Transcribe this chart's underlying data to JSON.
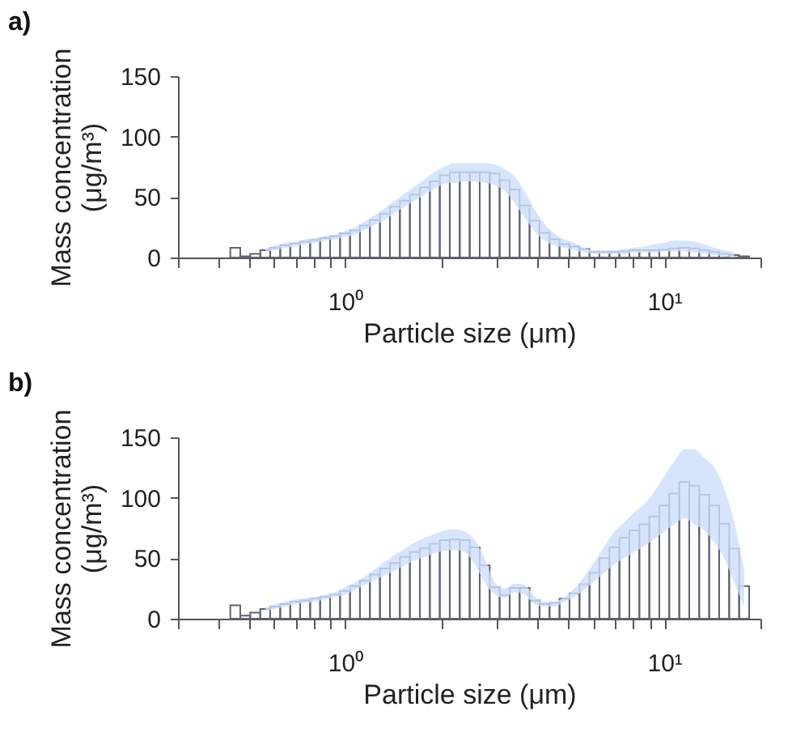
{
  "chart_data": [
    {
      "type": "histogram",
      "title": "a)",
      "xlabel": "Particle size (μm)",
      "ylabel": "Mass concentration (μg/m³)",
      "log": "x",
      "xlim": [
        0.3,
        20
      ],
      "xticks": [
        {
          "value": 0.3,
          "label": null
        },
        {
          "value": 0.4,
          "label": null
        },
        {
          "value": 0.5,
          "label": null
        },
        {
          "value": 0.6,
          "label": null
        },
        {
          "value": 0.7,
          "label": null
        },
        {
          "value": 0.8,
          "label": null
        },
        {
          "value": 0.9,
          "label": null
        },
        {
          "value": 1,
          "label": "10⁰"
        },
        {
          "value": 2,
          "label": null
        },
        {
          "value": 3,
          "label": null
        },
        {
          "value": 4,
          "label": null
        },
        {
          "value": 5,
          "label": null
        },
        {
          "value": 6,
          "label": null
        },
        {
          "value": 7,
          "label": null
        },
        {
          "value": 8,
          "label": null
        },
        {
          "value": 9,
          "label": null
        },
        {
          "value": 10,
          "label": "10¹"
        },
        {
          "value": 20,
          "label": null
        }
      ],
      "ylim": [
        0,
        150
      ],
      "yticks": [
        0,
        50,
        100,
        150
      ],
      "bins": [
        0.4375,
        0.47,
        0.505,
        0.543,
        0.583,
        0.627,
        0.674,
        0.724,
        0.778,
        0.836,
        0.898,
        0.965,
        1.037,
        1.114,
        1.197,
        1.287,
        1.383,
        1.486,
        1.597,
        1.716,
        1.844,
        1.981,
        2.129,
        2.288,
        2.458,
        2.642,
        2.839,
        3.05,
        3.278,
        3.523,
        3.785,
        4.068,
        4.371,
        4.697,
        5.048,
        5.424,
        5.829,
        6.264,
        6.731,
        7.233,
        7.772,
        8.352,
        8.975,
        9.645,
        10.36,
        11.14,
        11.97,
        12.86,
        13.82,
        14.85,
        15.96,
        17.15,
        18.43
      ],
      "series": [
        {
          "type": "histogram",
          "color": "#5f6470",
          "values": [
            8,
            1,
            3,
            6,
            8,
            10,
            11.5,
            13,
            14.5,
            16,
            17.5,
            20,
            22.5,
            26.5,
            31,
            36,
            42,
            47,
            52,
            58,
            63,
            68,
            70.5,
            70.5,
            70.5,
            70.5,
            69.5,
            64,
            56,
            43,
            30.5,
            20.5,
            15,
            11,
            9,
            7,
            4.5,
            4.5,
            4.5,
            5,
            6,
            6,
            6,
            6.5,
            7.5,
            8,
            7.5,
            6,
            4.5,
            3,
            2,
            1
          ]
        },
        {
          "type": "area",
          "color": "#cddffb",
          "x": [
            0.563,
            0.605,
            0.65,
            0.699,
            0.751,
            0.807,
            0.867,
            0.931,
            1.0,
            1.075,
            1.155,
            1.241,
            1.334,
            1.434,
            1.54,
            1.655,
            1.779,
            1.911,
            2.054,
            2.207,
            2.371,
            2.548,
            2.738,
            2.942,
            3.162,
            3.398,
            3.652,
            3.924,
            4.217,
            4.531,
            4.869,
            5.233,
            5.623,
            6.043,
            6.494,
            6.978,
            7.499,
            8.058,
            8.659,
            9.305,
            10.0,
            10.75,
            11.55,
            12.41,
            13.34,
            14.33,
            15.4,
            16.55
          ],
          "values": [
            null,
            null,
            null,
            null,
            null,
            null,
            null,
            null,
            null,
            null,
            null,
            null,
            null,
            null,
            null,
            null,
            null,
            null,
            null,
            null,
            null,
            null,
            null,
            null,
            null,
            null,
            null,
            null,
            null,
            null,
            null,
            null,
            null,
            null,
            null,
            null,
            null,
            null,
            null,
            null,
            null,
            null,
            null,
            null,
            null,
            null,
            null,
            null
          ],
          "lower": [
            5,
            6,
            8,
            9,
            11,
            12,
            14,
            15,
            17,
            19,
            23,
            27,
            31,
            37,
            42,
            47,
            52,
            57,
            61,
            62,
            63,
            63,
            62,
            60,
            55,
            45,
            33,
            22,
            14,
            10,
            8,
            6,
            4,
            3,
            3,
            3,
            3,
            4,
            4,
            4,
            5,
            5,
            5,
            4,
            3,
            2,
            1,
            0
          ],
          "upper": [
            7,
            10,
            12,
            13,
            15,
            16,
            18,
            19,
            22,
            25,
            30,
            35,
            41,
            47,
            53,
            59,
            65,
            71,
            75,
            78,
            78,
            78,
            78,
            77,
            73,
            67,
            55,
            40,
            28,
            20,
            15,
            12,
            8,
            6,
            6,
            6,
            7,
            8,
            9,
            11,
            12,
            14,
            14,
            13,
            11,
            8,
            6,
            4
          ]
        }
      ]
    },
    {
      "type": "histogram",
      "title": "b)",
      "xlabel": "Particle size (μm)",
      "ylabel": "Mass concentration (μg/m³)",
      "log": "x",
      "xlim": [
        0.3,
        20
      ],
      "xticks": [
        {
          "value": 0.3,
          "label": null
        },
        {
          "value": 0.4,
          "label": null
        },
        {
          "value": 0.5,
          "label": null
        },
        {
          "value": 0.6,
          "label": null
        },
        {
          "value": 0.7,
          "label": null
        },
        {
          "value": 0.8,
          "label": null
        },
        {
          "value": 0.9,
          "label": null
        },
        {
          "value": 1,
          "label": "10⁰"
        },
        {
          "value": 2,
          "label": null
        },
        {
          "value": 3,
          "label": null
        },
        {
          "value": 4,
          "label": null
        },
        {
          "value": 5,
          "label": null
        },
        {
          "value": 6,
          "label": null
        },
        {
          "value": 7,
          "label": null
        },
        {
          "value": 8,
          "label": null
        },
        {
          "value": 9,
          "label": null
        },
        {
          "value": 10,
          "label": "10¹"
        },
        {
          "value": 20,
          "label": null
        }
      ],
      "ylim": [
        0,
        150
      ],
      "yticks": [
        0,
        50,
        100,
        150
      ],
      "bins": [
        0.4375,
        0.47,
        0.505,
        0.543,
        0.583,
        0.627,
        0.674,
        0.724,
        0.778,
        0.836,
        0.898,
        0.965,
        1.037,
        1.114,
        1.197,
        1.287,
        1.383,
        1.486,
        1.597,
        1.716,
        1.844,
        1.981,
        2.129,
        2.288,
        2.458,
        2.642,
        2.839,
        3.05,
        3.278,
        3.523,
        3.785,
        4.068,
        4.371,
        4.697,
        5.048,
        5.424,
        5.829,
        6.264,
        6.731,
        7.233,
        7.772,
        8.352,
        8.975,
        9.645,
        10.36,
        11.14,
        11.97,
        12.86,
        13.82,
        14.85,
        15.96,
        17.15,
        18.43
      ],
      "series": [
        {
          "type": "histogram",
          "color": "#5f6470",
          "values": [
            11,
            2.5,
            5,
            8,
            10,
            12,
            14,
            15,
            16.5,
            18,
            20,
            23,
            27,
            31.5,
            36.5,
            41.5,
            46,
            51,
            55,
            58.5,
            62,
            65,
            65.5,
            65,
            59,
            44,
            26,
            19.5,
            25.5,
            25.5,
            15,
            12,
            13,
            16.5,
            21,
            28.5,
            38,
            50,
            59,
            67,
            73,
            78,
            84.5,
            93.5,
            103.5,
            113,
            110,
            102.5,
            93.5,
            78.5,
            58,
            27
          ]
        },
        {
          "type": "area",
          "color": "#cddffb",
          "x": [
            0.563,
            0.605,
            0.65,
            0.699,
            0.751,
            0.807,
            0.867,
            0.931,
            1.0,
            1.075,
            1.155,
            1.241,
            1.334,
            1.434,
            1.54,
            1.655,
            1.779,
            1.911,
            2.054,
            2.207,
            2.371,
            2.548,
            2.738,
            2.942,
            3.162,
            3.398,
            3.652,
            3.924,
            4.217,
            4.531,
            4.869,
            5.233,
            5.623,
            6.043,
            6.494,
            6.978,
            7.499,
            8.058,
            8.659,
            9.305,
            10.0,
            10.75,
            11.55,
            12.41,
            13.34,
            14.33,
            15.4,
            16.55,
            17.79
          ],
          "values": [
            null,
            null,
            null,
            null,
            null,
            null,
            null,
            null,
            null,
            null,
            null,
            null,
            null,
            null,
            null,
            null,
            null,
            null,
            null,
            null,
            null,
            null,
            null,
            null,
            null,
            null,
            null,
            null,
            null,
            null,
            null,
            null,
            null,
            null,
            null,
            null,
            null,
            null,
            null,
            null,
            null,
            null,
            null,
            null,
            null,
            null,
            null,
            null,
            null
          ],
          "lower": [
            6,
            8,
            10,
            12,
            13,
            14,
            16,
            18,
            20,
            24,
            28,
            32,
            36,
            40,
            44,
            48,
            51,
            54,
            56,
            57,
            55,
            45,
            30,
            20,
            17,
            22,
            20,
            12,
            10,
            10,
            14,
            18,
            24,
            31,
            38,
            45,
            50,
            55,
            60,
            66,
            72,
            78,
            83,
            78,
            73,
            63,
            50,
            30,
            10
          ],
          "upper": [
            9,
            12,
            14,
            16,
            17,
            18,
            20,
            22,
            26,
            30,
            35,
            41,
            47,
            53,
            58,
            63,
            67,
            70,
            73,
            74,
            72,
            65,
            50,
            30,
            25,
            29,
            28,
            18,
            14,
            14,
            18,
            25,
            35,
            47,
            60,
            72,
            80,
            88,
            95,
            105,
            118,
            130,
            140,
            140,
            133,
            125,
            108,
            80,
            40
          ]
        }
      ]
    }
  ]
}
